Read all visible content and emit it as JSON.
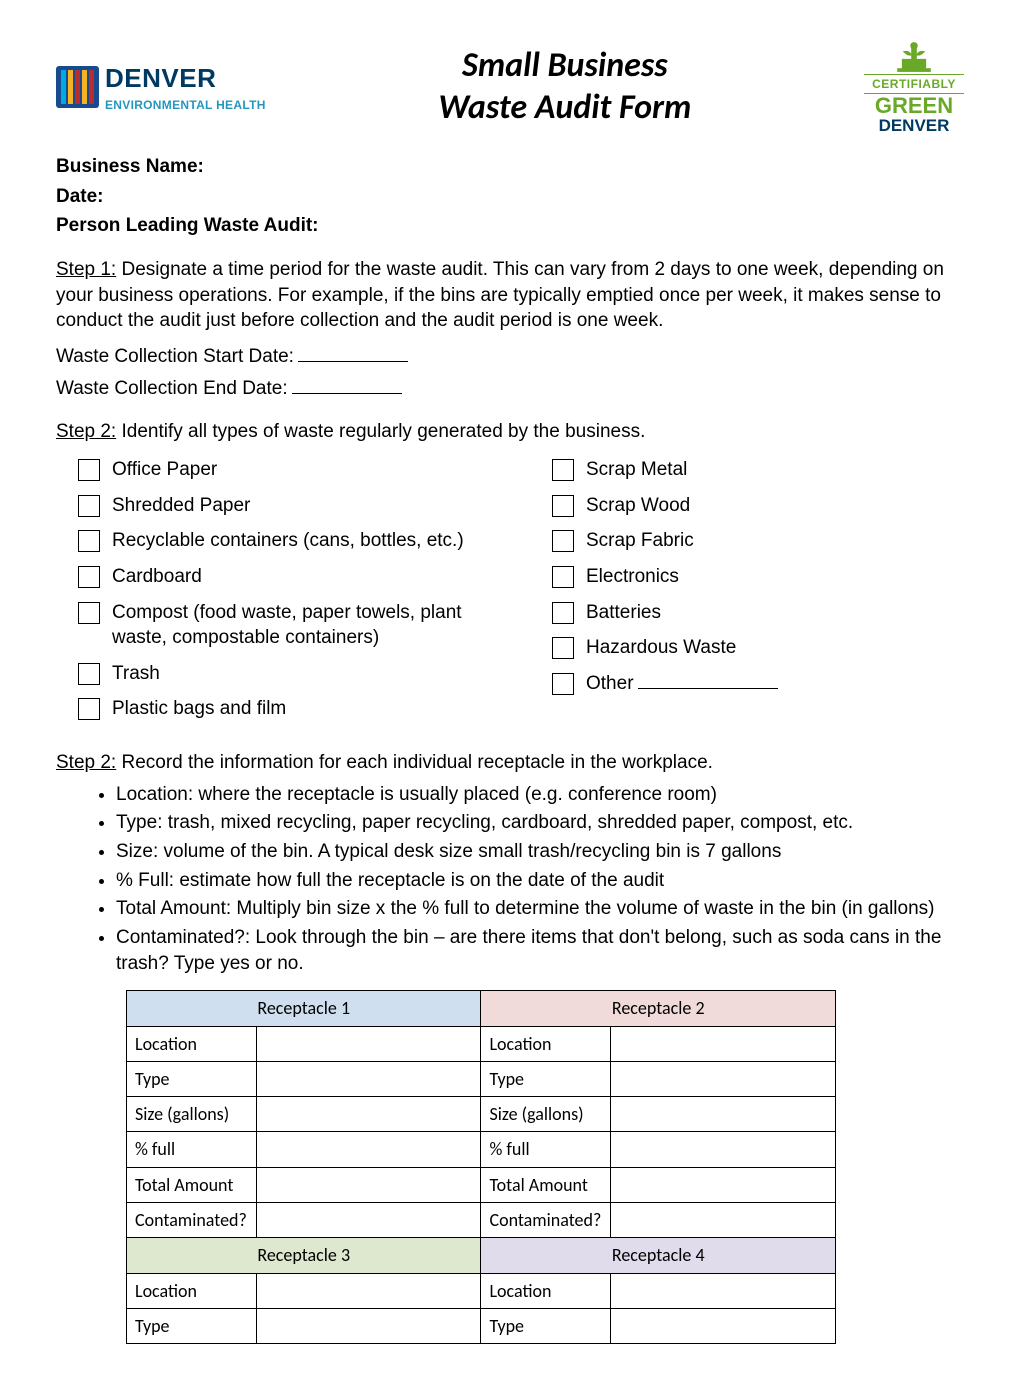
{
  "header": {
    "title_line1": "Small Business",
    "title_line2": "Waste Audit Form",
    "logo_left": {
      "name": "DENVER",
      "subtitle": "ENVIRONMENTAL HEALTH",
      "bar_colors": [
        "#00a9e0",
        "#f5b324",
        "#b82e2e",
        "#f5b324",
        "#b82e2e"
      ]
    },
    "logo_right": {
      "line1": "CERTIFIABLY",
      "line2": "GREEN",
      "line3": "DENVER",
      "green": "#6aa928",
      "navy": "#003a63"
    }
  },
  "fields": {
    "business_name": "Business Name:",
    "date": "Date:",
    "person_leading": "Person Leading Waste Audit:"
  },
  "step1": {
    "label": "Step 1:",
    "text": " Designate a time period for the waste audit. This can vary from 2 days to one week, depending on your business operations. For example, if the bins are typically emptied once per week, it makes sense to conduct the audit just before collection and the audit period is one week.",
    "start_date": "Waste Collection Start Date:",
    "end_date": "Waste Collection End Date:"
  },
  "step2a": {
    "label": "Step 2:",
    "text": " Identify all types of waste regularly generated by the business.",
    "col1": [
      "Office Paper",
      "Shredded Paper",
      "Recyclable containers (cans, bottles, etc.)",
      "Cardboard",
      "Compost (food waste, paper towels, plant waste, compostable containers)",
      "Trash",
      "Plastic bags and film"
    ],
    "col2": [
      "Scrap Metal",
      "Scrap Wood",
      "Scrap Fabric",
      "Electronics",
      "Batteries",
      "Hazardous Waste",
      "Other"
    ]
  },
  "step2b": {
    "label": "Step 2:",
    "text": " Record the information for each individual receptacle in the workplace.",
    "bullets": [
      "Location: where the receptacle is usually placed (e.g. conference room)",
      "Type: trash, mixed recycling, paper recycling, cardboard, shredded paper, compost, etc.",
      "Size: volume of the bin. A typical desk size small trash/recycling bin is 7 gallons",
      "% Full: estimate how full the receptacle is on the date of the audit",
      "Total Amount: Multiply bin size x the % full to determine the volume of waste in the bin (in gallons)",
      "Contaminated?: Look through the bin – are there items that don't belong, such as soda cans in the trash? Type yes or no."
    ]
  },
  "tables": {
    "row_labels_full": [
      "Location",
      "Type",
      "Size (gallons)",
      "% full",
      "Total Amount",
      "Contaminated?"
    ],
    "row_labels_short": [
      "Location",
      "Type"
    ],
    "receptacles": [
      {
        "title": "Receptacle 1",
        "bg": "#cfdfef"
      },
      {
        "title": "Receptacle 2",
        "bg": "#f0dada"
      },
      {
        "title": "Receptacle 3",
        "bg": "#dee8cf"
      },
      {
        "title": "Receptacle 4",
        "bg": "#e0dceb"
      }
    ]
  }
}
